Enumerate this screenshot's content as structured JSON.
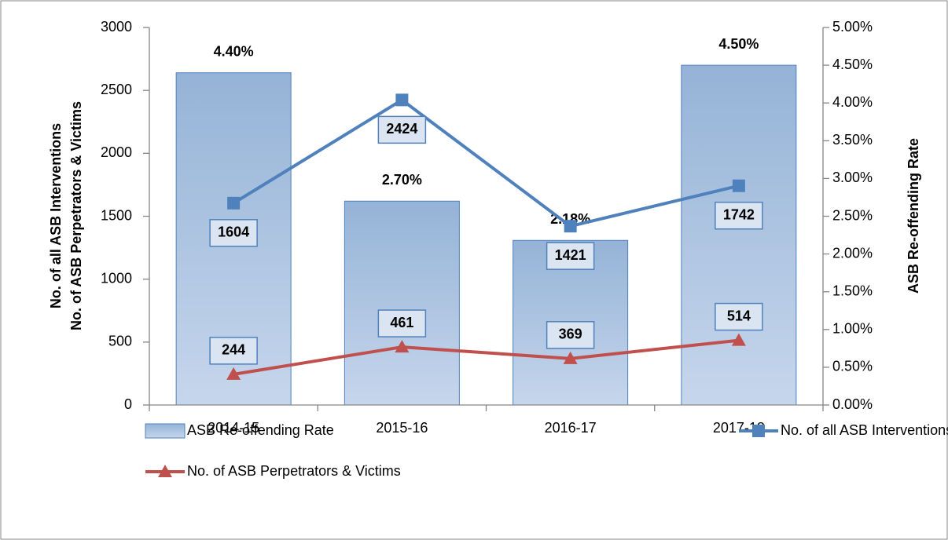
{
  "chart_data": {
    "type": "combo",
    "categories": [
      "2014-15",
      "2015-16",
      "2016-17",
      "2017-18"
    ],
    "y_label_lines": [
      "No. of all ASB Interventions",
      "No. of ASB Perpetrators & Victims"
    ],
    "y2_label": "ASB Re-offending Rate",
    "ylim": [
      0,
      3000
    ],
    "yticks": [
      0,
      500,
      1000,
      1500,
      2000,
      2500,
      3000
    ],
    "y2lim": [
      0,
      5
    ],
    "y2ticks": [
      {
        "value": 0,
        "label": "0.00%"
      },
      {
        "value": 0.5,
        "label": "0.50%"
      },
      {
        "value": 1,
        "label": "1.00%"
      },
      {
        "value": 1.5,
        "label": "1.50%"
      },
      {
        "value": 2,
        "label": "2.00%"
      },
      {
        "value": 2.5,
        "label": "2.50%"
      },
      {
        "value": 3,
        "label": "3.00%"
      },
      {
        "value": 3.5,
        "label": "3.50%"
      },
      {
        "value": 4,
        "label": "4.00%"
      },
      {
        "value": 4.5,
        "label": "4.50%"
      },
      {
        "value": 5,
        "label": "5.00%"
      }
    ],
    "series": [
      {
        "name": "ASB Re-offending Rate",
        "type": "bar",
        "axis": "y2",
        "color": "#95b3d7",
        "values": [
          4.4,
          2.7,
          2.18,
          4.5
        ],
        "value_labels": [
          "4.40%",
          "2.70%",
          "2.18%",
          "4.50%"
        ]
      },
      {
        "name": "No. of all ASB Interventions",
        "type": "line",
        "marker": "square",
        "color": "#4f81bd",
        "values": [
          1604,
          2424,
          1421,
          1742
        ]
      },
      {
        "name": "No. of ASB Perpetrators & Victims",
        "type": "line",
        "marker": "triangle",
        "color": "#c0504d",
        "values": [
          244,
          461,
          369,
          514
        ]
      }
    ],
    "legend": "bottom"
  }
}
